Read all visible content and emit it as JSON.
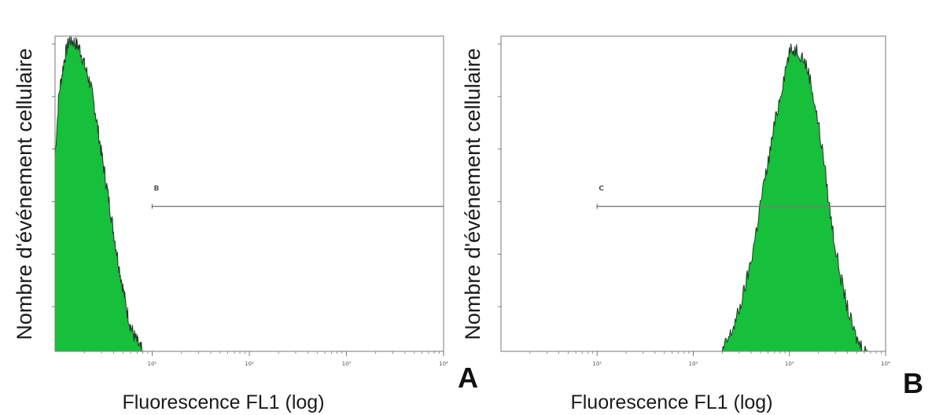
{
  "colors": {
    "fill": "#16c03a",
    "outline": "#1f3a25",
    "frame": "#7a7a7a",
    "gate": "#7a7a7a"
  },
  "chart_data": [
    {
      "type": "area",
      "panel_label": "A",
      "xlabel": "Fluorescence FL1 (log)",
      "ylabel": "Nombre d'événement cellulaire",
      "x_scale": "log",
      "xlim": [
        1,
        10000
      ],
      "ylim": [
        0,
        1
      ],
      "ytick_count": 6,
      "x_tick_labels": [
        "10¹",
        "10²",
        "10³",
        "10⁴"
      ],
      "x_tick_values": [
        10,
        100,
        1000,
        10000
      ],
      "gate": {
        "label": "B",
        "x_start": 10,
        "x_end": 10000,
        "y": 0.46
      },
      "histogram": {
        "x": [
          1,
          1.1,
          1.25,
          1.4,
          1.6,
          1.8,
          2.0,
          2.3,
          2.6,
          3.0,
          3.5,
          4.0,
          4.5,
          5.0,
          5.5,
          6.0,
          6.5,
          7.0,
          7.5,
          8.0
        ],
        "y": [
          0.62,
          0.82,
          0.93,
          0.99,
          0.98,
          0.96,
          0.91,
          0.85,
          0.76,
          0.63,
          0.5,
          0.38,
          0.28,
          0.2,
          0.13,
          0.08,
          0.05,
          0.03,
          0.01,
          0.0
        ]
      }
    },
    {
      "type": "area",
      "panel_label": "B",
      "xlabel": "Fluorescence FL1 (log)",
      "ylabel": "Nombre d'événement cellulaire",
      "x_scale": "log",
      "xlim": [
        1,
        10000
      ],
      "ylim": [
        0,
        1
      ],
      "ytick_count": 6,
      "x_tick_labels": [
        "10¹",
        "10²",
        "10³",
        "10⁴"
      ],
      "x_tick_values": [
        10,
        100,
        1000,
        10000
      ],
      "gate": {
        "label": "C",
        "x_start": 10,
        "x_end": 10000,
        "y": 0.46
      },
      "histogram": {
        "x": [
          200,
          250,
          300,
          350,
          400,
          450,
          500,
          600,
          700,
          800,
          900,
          1000,
          1200,
          1400,
          1600,
          1800,
          2000,
          2300,
          2600,
          3000,
          3500,
          4000,
          4500,
          5000,
          5500,
          6000,
          6500
        ],
        "y": [
          0.0,
          0.06,
          0.13,
          0.21,
          0.29,
          0.38,
          0.47,
          0.6,
          0.72,
          0.81,
          0.89,
          0.95,
          0.96,
          0.93,
          0.88,
          0.8,
          0.72,
          0.6,
          0.46,
          0.33,
          0.22,
          0.14,
          0.08,
          0.04,
          0.02,
          0.01,
          0.0
        ]
      }
    }
  ]
}
